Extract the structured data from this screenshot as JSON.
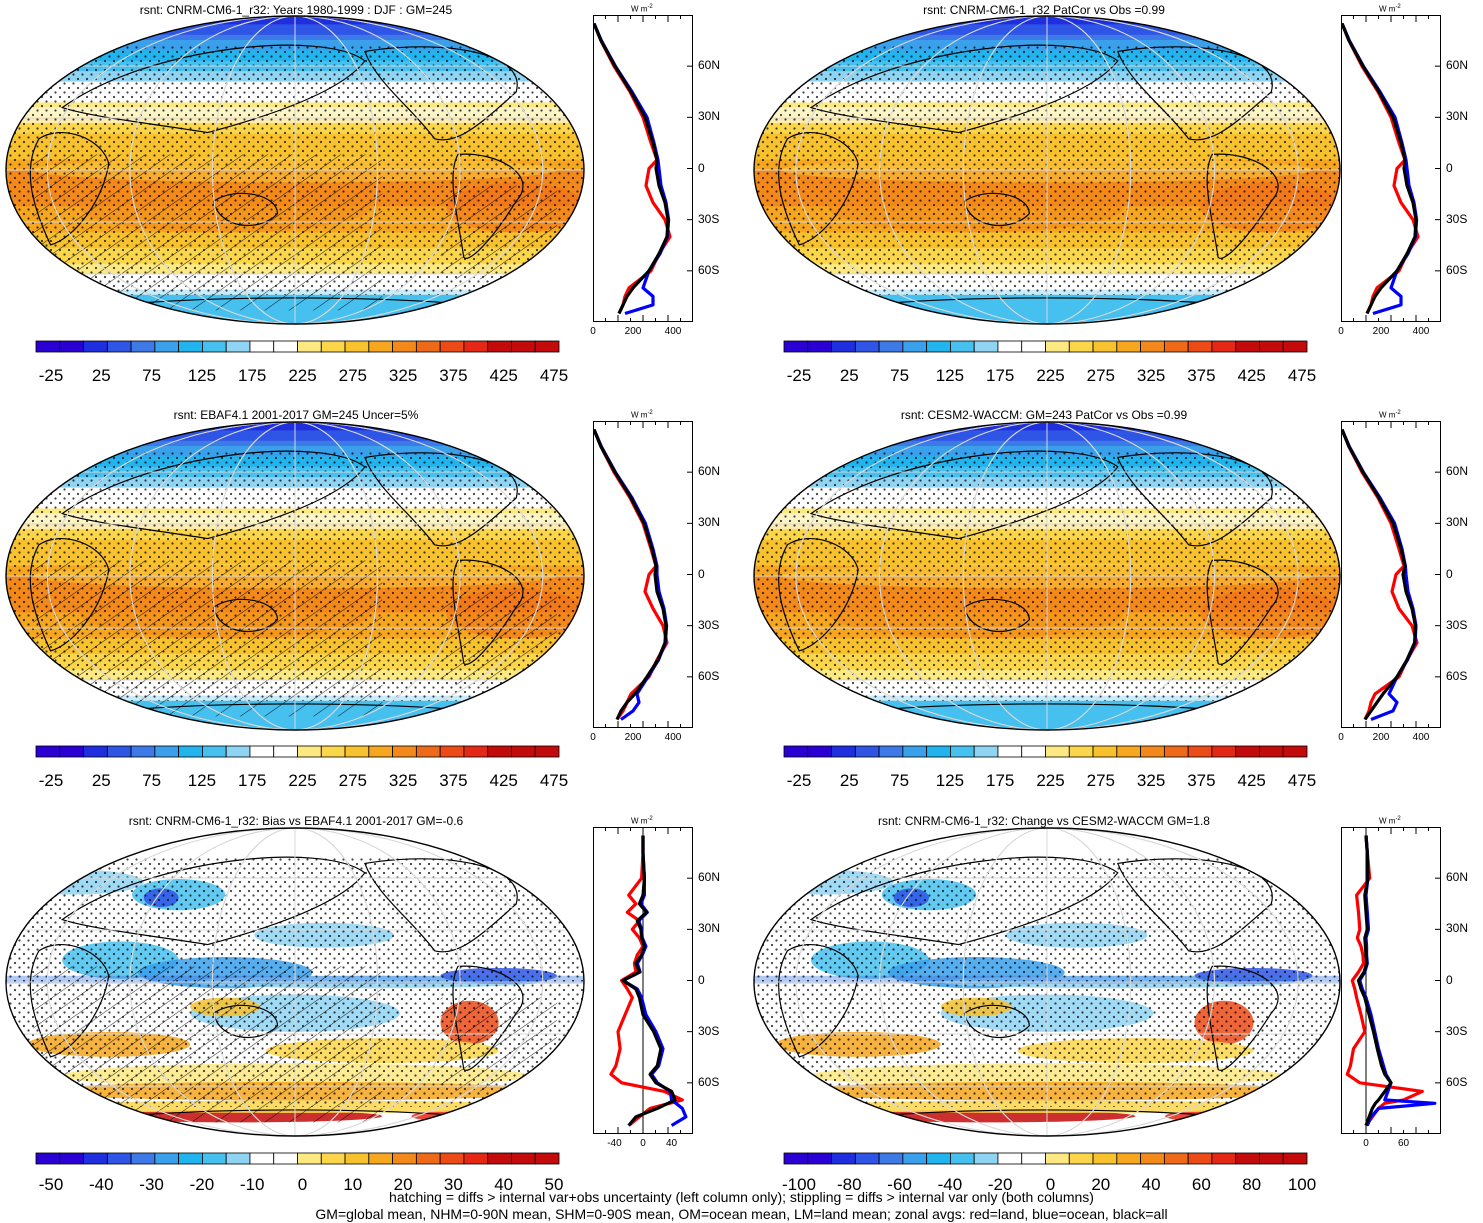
{
  "panels": [
    {
      "id": "p1",
      "title": "rsnt: CNRM-CM6-1_r32: Years 1980-1999 : DJF : GM=245",
      "colorbar_labels": [
        "-25",
        "25",
        "75",
        "125",
        "175",
        "225",
        "275",
        "325",
        "375",
        "425",
        "475"
      ],
      "zonal_xticks": [
        "0",
        "200",
        "400"
      ],
      "zonal_unit": "W m",
      "zonal_unit_sup": "-2",
      "lat_labels": [
        "60N",
        "30N",
        "0",
        "30S",
        "60S"
      ],
      "hatching": true
    },
    {
      "id": "p2",
      "title": "rsnt: CNRM-CM6-1_r32 PatCor vs Obs =0.99",
      "colorbar_labels": [
        "-25",
        "25",
        "75",
        "125",
        "175",
        "225",
        "275",
        "325",
        "375",
        "425",
        "475"
      ],
      "zonal_xticks": [
        "0",
        "200",
        "400"
      ],
      "zonal_unit": "W m",
      "zonal_unit_sup": "-2",
      "lat_labels": [
        "60N",
        "30N",
        "0",
        "30S",
        "60S"
      ],
      "hatching": false
    },
    {
      "id": "p3",
      "title": "rsnt: EBAF4.1 2001-2017 GM=245 Uncer=5%",
      "colorbar_labels": [
        "-25",
        "25",
        "75",
        "125",
        "175",
        "225",
        "275",
        "325",
        "375",
        "425",
        "475"
      ],
      "zonal_xticks": [
        "0",
        "200",
        "400"
      ],
      "zonal_unit": "W m",
      "zonal_unit_sup": "-2",
      "lat_labels": [
        "60N",
        "30N",
        "0",
        "30S",
        "60S"
      ],
      "hatching": true
    },
    {
      "id": "p4",
      "title": "rsnt: CESM2-WACCM: GM=243 PatCor vs Obs =0.99",
      "colorbar_labels": [
        "-25",
        "25",
        "75",
        "125",
        "175",
        "225",
        "275",
        "325",
        "375",
        "425",
        "475"
      ],
      "zonal_xticks": [
        "0",
        "200",
        "400"
      ],
      "zonal_unit": "W m",
      "zonal_unit_sup": "-2",
      "lat_labels": [
        "60N",
        "30N",
        "0",
        "30S",
        "60S"
      ],
      "hatching": false
    },
    {
      "id": "p5",
      "title": "rsnt: CNRM-CM6-1_r32: Bias vs EBAF4.1 2001-2017 GM=-0.6",
      "colorbar_labels": [
        "-50",
        "-40",
        "-30",
        "-20",
        "-10",
        "0",
        "10",
        "20",
        "30",
        "40",
        "50"
      ],
      "zonal_xticks": [
        "-40",
        "0",
        "40"
      ],
      "zonal_unit": "W m",
      "zonal_unit_sup": "-2",
      "lat_labels": [
        "60N",
        "30N",
        "0",
        "30S",
        "60S"
      ],
      "hatching": true
    },
    {
      "id": "p6",
      "title": "rsnt: CNRM-CM6-1_r32: Change vs CESM2-WACCM GM=1.8",
      "colorbar_labels": [
        "-100",
        "-80",
        "-60",
        "-40",
        "-20",
        "0",
        "20",
        "40",
        "60",
        "80",
        "100"
      ],
      "zonal_xticks": [
        "0",
        "60"
      ],
      "zonal_unit": "W m",
      "zonal_unit_sup": "-2",
      "lat_labels": [
        "60N",
        "30N",
        "0",
        "30S",
        "60S"
      ],
      "hatching": false
    }
  ],
  "colors": {
    "palette": [
      "#2b00d4",
      "#1f2fe0",
      "#2f55e6",
      "#3d7ae8",
      "#3aa0ec",
      "#22b4ee",
      "#46c0ef",
      "#8fd4f2",
      "#ffffff",
      "#ffffff",
      "#fde982",
      "#fcd64a",
      "#f8c12e",
      "#f6a61f",
      "#f3891a",
      "#ef6a18",
      "#ec4a17",
      "#e52815",
      "#c40b0b"
    ],
    "zonal_land": "#ff0000",
    "zonal_ocean": "#0000ff",
    "zonal_all": "#000000"
  },
  "footer": {
    "line1": "hatching = diffs > internal var+obs uncertainty (left column only); stippling = diffs > internal var only (both columns)",
    "line2": "GM=global mean, NHM=0-90N mean, SHM=0-90S mean, OM=ocean mean, LM=land mean; zonal avgs: red=land, blue=ocean, black=all"
  },
  "chart_data": [
    {
      "type": "heatmap",
      "title": "rsnt: CNRM-CM6-1_r32: Years 1980-1999 : DJF : GM=245",
      "colorbar_ticks": [
        -25,
        25,
        75,
        125,
        175,
        225,
        275,
        325,
        375,
        425,
        475
      ],
      "zonal_profile": {
        "xticks": [
          0,
          200,
          400
        ],
        "xlim": [
          0,
          500
        ],
        "lat": [
          85,
          75,
          60,
          45,
          30,
          15,
          5,
          0,
          -10,
          -20,
          -30,
          -40,
          -50,
          -60,
          -70,
          -75,
          -80,
          -85
        ],
        "all": [
          5,
          40,
          110,
          190,
          260,
          300,
          320,
          315,
          330,
          360,
          375,
          370,
          330,
          280,
          200,
          170,
          150,
          130
        ],
        "land": [
          5,
          40,
          105,
          185,
          250,
          290,
          320,
          280,
          265,
          300,
          360,
          385,
          330,
          290,
          180,
          160,
          150,
          130
        ],
        "ocean": [
          5,
          42,
          112,
          195,
          270,
          305,
          325,
          330,
          340,
          365,
          378,
          372,
          335,
          280,
          250,
          300,
          300,
          160
        ]
      }
    },
    {
      "type": "heatmap",
      "title": "rsnt: CNRM-CM6-1_r32 PatCor vs Obs =0.99",
      "colorbar_ticks": [
        -25,
        25,
        75,
        125,
        175,
        225,
        275,
        325,
        375,
        425,
        475
      ],
      "zonal_profile": {
        "xticks": [
          0,
          200,
          400
        ],
        "xlim": [
          0,
          500
        ],
        "lat": [
          85,
          75,
          60,
          45,
          30,
          15,
          5,
          0,
          -10,
          -20,
          -30,
          -40,
          -50,
          -60,
          -70,
          -75,
          -80,
          -85
        ],
        "all": [
          5,
          40,
          110,
          190,
          260,
          300,
          320,
          315,
          330,
          360,
          375,
          370,
          330,
          280,
          200,
          170,
          150,
          130
        ],
        "land": [
          5,
          40,
          105,
          185,
          250,
          290,
          320,
          280,
          265,
          300,
          360,
          385,
          330,
          290,
          180,
          160,
          150,
          130
        ],
        "ocean": [
          5,
          42,
          112,
          195,
          270,
          305,
          325,
          330,
          340,
          365,
          378,
          372,
          335,
          280,
          250,
          300,
          300,
          160
        ]
      }
    },
    {
      "type": "heatmap",
      "title": "rsnt: EBAF4.1 2001-2017 GM=245 Uncer=5%",
      "colorbar_ticks": [
        -25,
        25,
        75,
        125,
        175,
        225,
        275,
        325,
        375,
        425,
        475
      ],
      "zonal_profile": {
        "xticks": [
          0,
          200,
          400
        ],
        "xlim": [
          0,
          500
        ],
        "lat": [
          85,
          75,
          60,
          45,
          30,
          15,
          5,
          0,
          -10,
          -20,
          -30,
          -40,
          -50,
          -60,
          -70,
          -75,
          -80,
          -85
        ],
        "all": [
          5,
          40,
          110,
          190,
          255,
          295,
          315,
          310,
          320,
          350,
          365,
          360,
          325,
          270,
          210,
          170,
          140,
          120
        ],
        "land": [
          5,
          40,
          105,
          185,
          250,
          290,
          315,
          280,
          260,
          300,
          350,
          370,
          320,
          280,
          190,
          170,
          150,
          120
        ],
        "ocean": [
          5,
          42,
          112,
          195,
          262,
          300,
          320,
          320,
          330,
          355,
          368,
          362,
          328,
          275,
          220,
          230,
          200,
          140
        ]
      }
    },
    {
      "type": "heatmap",
      "title": "rsnt: CESM2-WACCM: GM=243 PatCor vs Obs =0.99",
      "colorbar_ticks": [
        -25,
        25,
        75,
        125,
        175,
        225,
        275,
        325,
        375,
        425,
        475
      ],
      "zonal_profile": {
        "xticks": [
          0,
          200,
          400
        ],
        "xlim": [
          0,
          500
        ],
        "lat": [
          85,
          75,
          60,
          45,
          30,
          15,
          5,
          0,
          -10,
          -20,
          -30,
          -40,
          -50,
          -60,
          -70,
          -75,
          -80,
          -85
        ],
        "all": [
          5,
          40,
          110,
          190,
          260,
          300,
          320,
          310,
          325,
          355,
          372,
          368,
          330,
          280,
          210,
          180,
          150,
          120
        ],
        "land": [
          5,
          40,
          105,
          185,
          250,
          290,
          315,
          275,
          255,
          290,
          355,
          380,
          330,
          290,
          170,
          150,
          140,
          120
        ],
        "ocean": [
          5,
          42,
          112,
          195,
          268,
          305,
          322,
          325,
          335,
          360,
          375,
          370,
          333,
          280,
          240,
          280,
          260,
          150
        ]
      }
    },
    {
      "type": "heatmap",
      "title": "rsnt: CNRM-CM6-1_r32: Bias vs EBAF4.1 2001-2017 GM=-0.6",
      "colorbar_ticks": [
        -50,
        -40,
        -30,
        -20,
        -10,
        0,
        10,
        20,
        30,
        40,
        50
      ],
      "zonal_profile": {
        "xticks": [
          -40,
          0,
          40
        ],
        "xlim": [
          -70,
          70
        ],
        "lat": [
          85,
          75,
          60,
          50,
          45,
          40,
          35,
          30,
          25,
          20,
          15,
          10,
          5,
          0,
          -5,
          -10,
          -20,
          -30,
          -40,
          -50,
          -55,
          -60,
          -65,
          -70,
          -75,
          -80,
          -85
        ],
        "all": [
          0,
          0,
          2,
          0,
          -5,
          5,
          -8,
          -3,
          -2,
          2,
          -2,
          -10,
          -5,
          -28,
          -10,
          -5,
          0,
          15,
          25,
          20,
          10,
          18,
          40,
          45,
          20,
          -10,
          -20
        ],
        "land": [
          0,
          0,
          -2,
          -20,
          -10,
          -22,
          -5,
          -15,
          -5,
          0,
          -8,
          -12,
          -10,
          -30,
          -22,
          -15,
          -25,
          -35,
          -32,
          -38,
          -45,
          -30,
          30,
          55,
          10,
          -5,
          -20
        ],
        "ocean": [
          0,
          0,
          2,
          2,
          -3,
          6,
          -6,
          -2,
          -1,
          4,
          -1,
          -8,
          -4,
          -28,
          -8,
          -2,
          4,
          18,
          28,
          22,
          12,
          20,
          38,
          40,
          55,
          60,
          40
        ]
      }
    },
    {
      "type": "heatmap",
      "title": "rsnt: CNRM-CM6-1_r32: Change vs CESM2-WACCM GM=1.8",
      "colorbar_ticks": [
        -100,
        -80,
        -60,
        -40,
        -20,
        0,
        20,
        40,
        60,
        80,
        100
      ],
      "zonal_profile": {
        "xticks": [
          0,
          60
        ],
        "xlim": [
          -40,
          120
        ],
        "lat": [
          85,
          75,
          60,
          50,
          40,
          30,
          25,
          20,
          15,
          10,
          5,
          0,
          -5,
          -10,
          -20,
          -30,
          -40,
          -50,
          -55,
          -60,
          -65,
          -70,
          -72,
          -75,
          -80,
          -85
        ],
        "all": [
          0,
          2,
          3,
          -2,
          0,
          2,
          -2,
          -1,
          0,
          1,
          -3,
          -12,
          -8,
          -2,
          5,
          12,
          18,
          25,
          30,
          40,
          30,
          20,
          15,
          10,
          5,
          0
        ],
        "land": [
          0,
          2,
          6,
          -15,
          -12,
          -10,
          -14,
          -8,
          -5,
          -4,
          -12,
          -22,
          -18,
          -15,
          -8,
          -2,
          -20,
          -25,
          -30,
          -10,
          90,
          60,
          30,
          20,
          10,
          0
        ],
        "ocean": [
          0,
          2,
          3,
          0,
          2,
          4,
          0,
          1,
          1,
          2,
          -2,
          -10,
          -6,
          0,
          8,
          14,
          20,
          28,
          32,
          40,
          35,
          30,
          110,
          20,
          8,
          2
        ]
      }
    }
  ]
}
